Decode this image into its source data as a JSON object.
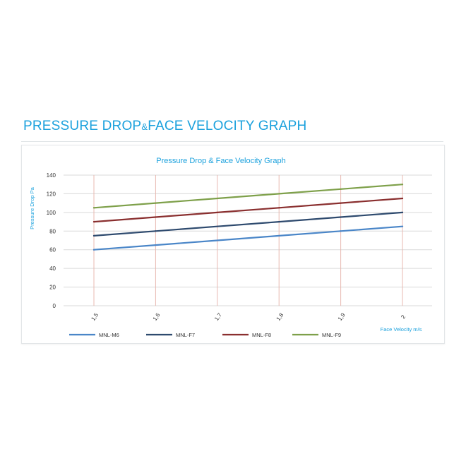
{
  "page": {
    "heading_part1": "PRESSURE DROP",
    "heading_amp": "&",
    "heading_part2": "FACE VELOCITY GRAPH"
  },
  "chart_data": {
    "type": "line",
    "title": "Pressure Drop  &  Face Velocity  Graph",
    "xlabel": "Face Velocity  m/s",
    "ylabel": "Pressure Drop  Pa",
    "x": [
      1.5,
      1.6,
      1.7,
      1.8,
      1.9,
      2
    ],
    "x_tick_labels": [
      "1,5",
      "1,6",
      "1,7",
      "1,8",
      "1,9",
      "2"
    ],
    "ylim": [
      0,
      140
    ],
    "y_ticks": [
      0,
      20,
      40,
      60,
      80,
      100,
      120,
      140
    ],
    "grid": "horizontal",
    "legend_position": "bottom",
    "series": [
      {
        "name": "MNL-M6",
        "color": "#4a86c8",
        "values": [
          60,
          65,
          70,
          75,
          80,
          85
        ]
      },
      {
        "name": "MNL-F7",
        "color": "#2e4a6e",
        "values": [
          75,
          80,
          85,
          90,
          95,
          100
        ]
      },
      {
        "name": "MNL-F8",
        "color": "#8a2f2f",
        "values": [
          90,
          95,
          100,
          105,
          110,
          115
        ]
      },
      {
        "name": "MNL-F9",
        "color": "#7ea04a",
        "values": [
          105,
          110,
          115,
          120,
          125,
          130
        ]
      }
    ],
    "colors": {
      "title": "#1ba1dd",
      "axis_text": "#333333",
      "grid": "#d9d9d9",
      "drop_lines": "#e8b8b0"
    }
  }
}
